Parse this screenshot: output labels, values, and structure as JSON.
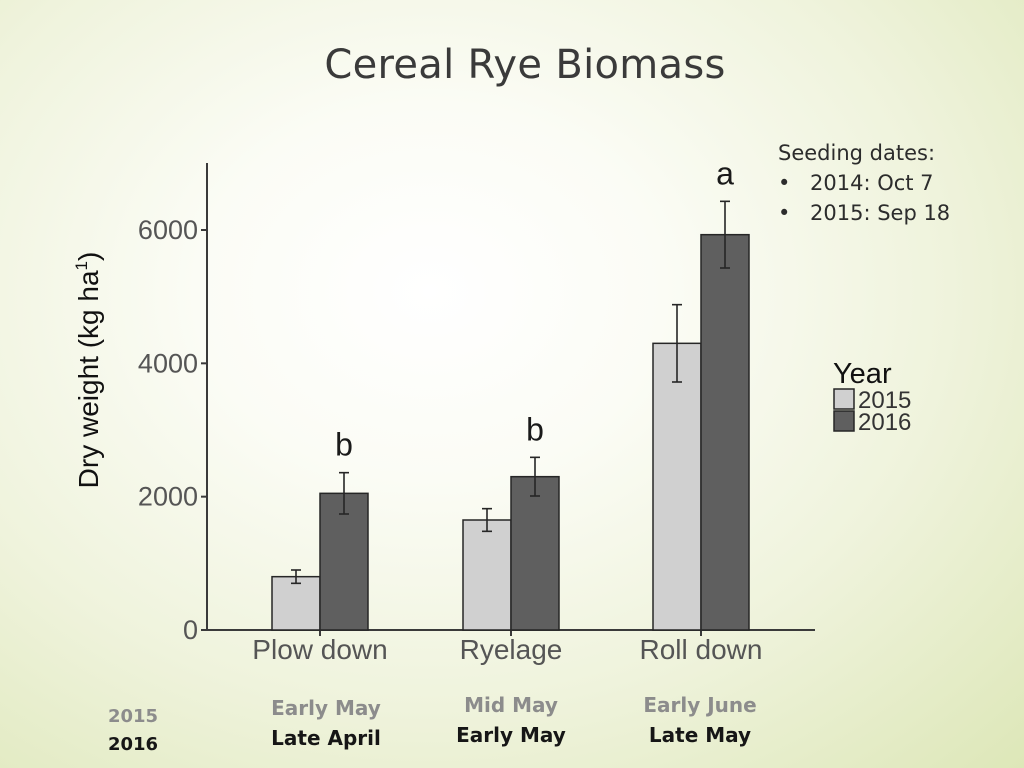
{
  "slide": {
    "title": "Cereal Rye Biomass",
    "seeding_header": "Seeding dates:",
    "seeding_items": [
      "2014: Oct 7",
      "2015: Sep 18"
    ],
    "bullet_char": "•"
  },
  "timing": {
    "key_2015": "2015",
    "key_2016": "2016",
    "groups": [
      {
        "y2015": "Early May",
        "y2016": "Late April"
      },
      {
        "y2015": "Mid May",
        "y2016": "Early May"
      },
      {
        "y2015": "Early June",
        "y2016": "Late May"
      }
    ]
  },
  "colors": {
    "y2015": "#d0d0d0",
    "y2016": "#5f5f5f",
    "timing_2015": "#8c8c8c",
    "timing_2016": "#161616"
  },
  "chart_data": {
    "type": "bar",
    "categories": [
      "Plow down",
      "Ryelage",
      "Roll down"
    ],
    "series": [
      {
        "name": "2015",
        "values": [
          800,
          1650,
          4300
        ],
        "error": [
          100,
          170,
          580
        ]
      },
      {
        "name": "2016",
        "values": [
          2050,
          2300,
          5930
        ],
        "error": [
          310,
          290,
          500
        ]
      }
    ],
    "significance_letters": [
      "b",
      "b",
      "a"
    ],
    "ylabel_main": "Dry weight (kg ha",
    "ylabel_sup": "1",
    "ylabel_close": ")",
    "yticks": [
      0,
      2000,
      4000,
      6000
    ],
    "ylim": [
      0,
      7000
    ],
    "legend_title": "Year",
    "legend_position": "right",
    "grid": false
  }
}
